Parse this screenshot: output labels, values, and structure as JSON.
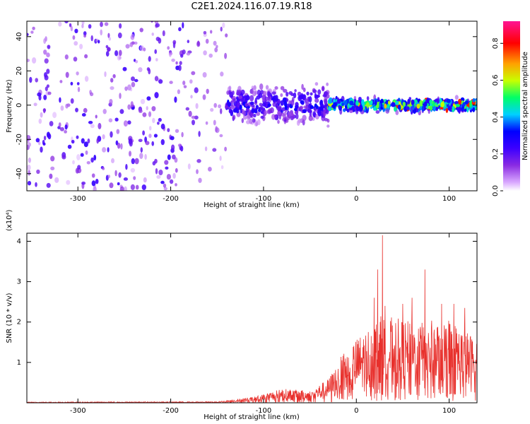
{
  "title": "C2E1.2024.116.07.19.R18",
  "chart_data": [
    {
      "type": "heatmap",
      "xlabel": "Height of straight line (km)",
      "ylabel": "Frequency (Hz)",
      "xlim": [
        -355,
        130
      ],
      "ylim": [
        -50,
        49
      ],
      "x_ticks": [
        -300,
        -200,
        -100,
        0,
        100
      ],
      "y_ticks": [
        -40,
        -20,
        0,
        20,
        40
      ],
      "x_tick_labels": [
        "-300",
        "-200",
        "-100",
        "0",
        "100"
      ],
      "y_tick_labels": [
        "-40",
        "-20",
        "0",
        "20",
        "40"
      ],
      "colorbar": {
        "label": "Normalized spectral amplitude",
        "range": [
          0,
          0.92
        ],
        "ticks": [
          0.0,
          0.2,
          0.4,
          0.6,
          0.8
        ],
        "tick_labels": [
          "0.0",
          "0.2",
          "0.4",
          "0.6",
          "0.8"
        ],
        "colors": [
          "#ffffff",
          "#d9a8ff",
          "#8a2be2",
          "#3c00ff",
          "#0000ff",
          "#00d0ff",
          "#00ff66",
          "#c8ff00",
          "#ffa000",
          "#ff0000",
          "#ff1493"
        ]
      },
      "bands": [
        {
          "x_start": -355,
          "x_end": -185,
          "freq_center": 0,
          "freq_halfwidth": 50,
          "peak_amplitude": 0.25,
          "note": "broadband noise"
        },
        {
          "x_start": -185,
          "x_end": -140,
          "freq_center": 2,
          "freq_halfwidth": 50,
          "peak_amplitude": 0.2
        },
        {
          "x_start": -140,
          "x_end": -30,
          "freq_center": 0,
          "freq_halfwidth": 15,
          "peak_amplitude": 0.35
        },
        {
          "x_start": -30,
          "x_end": 130,
          "freq_center": 0,
          "freq_halfwidth": 5,
          "peak_amplitude": 0.75
        }
      ]
    },
    {
      "type": "line",
      "xlabel": "Height of straight line (km)",
      "ylabel": "SNR (10 * v/v)",
      "y_multiplier": "(x10⁴)",
      "xlim": [
        -355,
        130
      ],
      "ylim": [
        0,
        4.2
      ],
      "x_ticks": [
        -300,
        -200,
        -100,
        0,
        100
      ],
      "y_ticks": [
        1,
        2,
        3,
        4
      ],
      "x_tick_labels": [
        "-300",
        "-200",
        "-100",
        "0",
        "100"
      ],
      "y_tick_labels": [
        "1",
        "2",
        "3",
        "4"
      ],
      "color": "#e8302c",
      "envelope": [
        {
          "x": -355,
          "y": 0.02
        },
        {
          "x": -150,
          "y": 0.03
        },
        {
          "x": -110,
          "y": 0.15
        },
        {
          "x": -80,
          "y": 0.35
        },
        {
          "x": -50,
          "y": 0.3
        },
        {
          "x": -30,
          "y": 0.6
        },
        {
          "x": -10,
          "y": 1.4
        },
        {
          "x": 10,
          "y": 1.8
        },
        {
          "x": 28,
          "y": 2.2
        },
        {
          "x": 60,
          "y": 2.0
        },
        {
          "x": 100,
          "y": 2.1
        },
        {
          "x": 130,
          "y": 1.6
        }
      ],
      "peaks": [
        {
          "x": 19,
          "y": 2.6
        },
        {
          "x": 23,
          "y": 3.3
        },
        {
          "x": 28,
          "y": 4.15
        },
        {
          "x": 31,
          "y": 2.4
        },
        {
          "x": 50,
          "y": 2.45
        },
        {
          "x": 60,
          "y": 2.6
        },
        {
          "x": 74,
          "y": 3.3
        },
        {
          "x": 92,
          "y": 2.45
        },
        {
          "x": 105,
          "y": 2.45
        },
        {
          "x": 117,
          "y": 2.35
        }
      ]
    }
  ]
}
